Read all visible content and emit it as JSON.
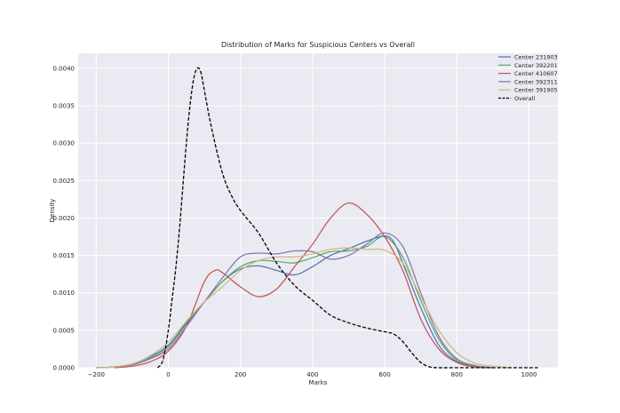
{
  "chart_data": {
    "type": "line",
    "title": "Distribution of Marks for Suspicious Centers vs Overall",
    "xlabel": "Marks",
    "ylabel": "Density",
    "xlim": [
      -250,
      1080
    ],
    "ylim": [
      0,
      0.0042
    ],
    "x_ticks": [
      -200,
      0,
      200,
      400,
      600,
      800,
      1000
    ],
    "y_ticks": [
      0,
      0.0005,
      0.001,
      0.0015,
      0.002,
      0.0025,
      0.003,
      0.0035,
      0.004
    ],
    "x_tick_labels": [
      "−200",
      "0",
      "200",
      "400",
      "600",
      "800",
      "1000"
    ],
    "y_tick_labels": [
      "0.0000",
      "0.0005",
      "0.0010",
      "0.0015",
      "0.0020",
      "0.0025",
      "0.0030",
      "0.0035",
      "0.0040"
    ],
    "grid": true,
    "legend_position": "top-right",
    "background": "#eaeaf2",
    "series": [
      {
        "name": "Center 231903",
        "color": "#4c72b0",
        "dash": "solid",
        "points": [
          [
            -200,
            0
          ],
          [
            -150,
            1e-05
          ],
          [
            -100,
            5e-05
          ],
          [
            -50,
            0.00015
          ],
          [
            0,
            0.0003
          ],
          [
            50,
            0.0006
          ],
          [
            100,
            0.00088
          ],
          [
            150,
            0.00115
          ],
          [
            200,
            0.00132
          ],
          [
            250,
            0.00136
          ],
          [
            300,
            0.0013
          ],
          [
            350,
            0.00124
          ],
          [
            400,
            0.00135
          ],
          [
            450,
            0.0015
          ],
          [
            500,
            0.00159
          ],
          [
            550,
            0.00169
          ],
          [
            600,
            0.00176
          ],
          [
            625,
            0.00168
          ],
          [
            650,
            0.0014
          ],
          [
            700,
            0.0008
          ],
          [
            750,
            0.0003
          ],
          [
            800,
            8e-05
          ],
          [
            850,
            2e-05
          ],
          [
            900,
            0
          ]
        ]
      },
      {
        "name": "Center 392201",
        "color": "#55a868",
        "dash": "solid",
        "points": [
          [
            -200,
            0
          ],
          [
            -150,
            1e-05
          ],
          [
            -100,
            4e-05
          ],
          [
            -50,
            0.00013
          ],
          [
            0,
            0.00028
          ],
          [
            50,
            0.00058
          ],
          [
            100,
            0.00088
          ],
          [
            150,
            0.00115
          ],
          [
            200,
            0.00135
          ],
          [
            250,
            0.00143
          ],
          [
            300,
            0.00142
          ],
          [
            350,
            0.0014
          ],
          [
            400,
            0.00147
          ],
          [
            450,
            0.00155
          ],
          [
            500,
            0.00156
          ],
          [
            550,
            0.00162
          ],
          [
            600,
            0.00175
          ],
          [
            650,
            0.00148
          ],
          [
            700,
            0.0009
          ],
          [
            750,
            0.00038
          ],
          [
            800,
            0.0001
          ],
          [
            850,
            2e-05
          ],
          [
            900,
            0
          ]
        ]
      },
      {
        "name": "Center 410607",
        "color": "#c44e52",
        "dash": "solid",
        "points": [
          [
            -150,
            0
          ],
          [
            -100,
            2e-05
          ],
          [
            -50,
            8e-05
          ],
          [
            0,
            0.00022
          ],
          [
            50,
            0.00055
          ],
          [
            100,
            0.00115
          ],
          [
            130,
            0.0013
          ],
          [
            150,
            0.00127
          ],
          [
            200,
            0.00108
          ],
          [
            250,
            0.00095
          ],
          [
            300,
            0.00105
          ],
          [
            350,
            0.00135
          ],
          [
            400,
            0.00165
          ],
          [
            450,
            0.002
          ],
          [
            500,
            0.0022
          ],
          [
            550,
            0.00205
          ],
          [
            600,
            0.00175
          ],
          [
            650,
            0.0013
          ],
          [
            700,
            0.00065
          ],
          [
            750,
            0.00025
          ],
          [
            800,
            7e-05
          ],
          [
            850,
            1e-05
          ],
          [
            900,
            0
          ]
        ]
      },
      {
        "name": "Center 392311",
        "color": "#8172b2",
        "dash": "solid",
        "points": [
          [
            -200,
            0
          ],
          [
            -150,
            1e-05
          ],
          [
            -100,
            4e-05
          ],
          [
            -50,
            0.00012
          ],
          [
            0,
            0.00025
          ],
          [
            50,
            0.00055
          ],
          [
            100,
            0.00088
          ],
          [
            150,
            0.0012
          ],
          [
            200,
            0.00148
          ],
          [
            250,
            0.00153
          ],
          [
            300,
            0.00152
          ],
          [
            350,
            0.00156
          ],
          [
            400,
            0.00155
          ],
          [
            450,
            0.00145
          ],
          [
            500,
            0.0015
          ],
          [
            550,
            0.00165
          ],
          [
            600,
            0.0018
          ],
          [
            650,
            0.00162
          ],
          [
            700,
            0.001
          ],
          [
            750,
            0.00042
          ],
          [
            800,
            0.00012
          ],
          [
            850,
            3e-05
          ],
          [
            900,
            0
          ]
        ]
      },
      {
        "name": "Center 391905",
        "color": "#ccb974",
        "dash": "solid",
        "points": [
          [
            -200,
            0
          ],
          [
            -150,
            1e-05
          ],
          [
            -100,
            5e-05
          ],
          [
            -50,
            0.00016
          ],
          [
            0,
            0.00034
          ],
          [
            50,
            0.00062
          ],
          [
            100,
            0.00088
          ],
          [
            150,
            0.00108
          ],
          [
            200,
            0.0013
          ],
          [
            250,
            0.00143
          ],
          [
            300,
            0.00148
          ],
          [
            350,
            0.00148
          ],
          [
            400,
            0.00152
          ],
          [
            450,
            0.00158
          ],
          [
            500,
            0.0016
          ],
          [
            550,
            0.00158
          ],
          [
            600,
            0.00157
          ],
          [
            650,
            0.0014
          ],
          [
            700,
            0.00095
          ],
          [
            750,
            0.0005
          ],
          [
            800,
            0.0002
          ],
          [
            850,
            6e-05
          ],
          [
            900,
            2e-05
          ],
          [
            950,
            0
          ]
        ]
      },
      {
        "name": "Overall",
        "color": "#000000",
        "dash": "dashed",
        "points": [
          [
            -30,
            0
          ],
          [
            -15,
            0.0001
          ],
          [
            0,
            0.0005
          ],
          [
            10,
            0.0009
          ],
          [
            20,
            0.0013
          ],
          [
            30,
            0.0018
          ],
          [
            40,
            0.0024
          ],
          [
            50,
            0.003
          ],
          [
            60,
            0.0035
          ],
          [
            70,
            0.00385
          ],
          [
            80,
            0.004
          ],
          [
            90,
            0.00395
          ],
          [
            100,
            0.0037
          ],
          [
            120,
            0.0032
          ],
          [
            150,
            0.0026
          ],
          [
            175,
            0.0023
          ],
          [
            200,
            0.0021
          ],
          [
            250,
            0.0018
          ],
          [
            300,
            0.0014
          ],
          [
            350,
            0.0011
          ],
          [
            400,
            0.0009
          ],
          [
            450,
            0.0007
          ],
          [
            500,
            0.0006
          ],
          [
            550,
            0.00053
          ],
          [
            600,
            0.00048
          ],
          [
            625,
            0.00045
          ],
          [
            650,
            0.00035
          ],
          [
            675,
            0.0002
          ],
          [
            700,
            7e-05
          ],
          [
            725,
            1e-05
          ],
          [
            750,
            0
          ],
          [
            800,
            0
          ],
          [
            900,
            0
          ],
          [
            1025,
            0
          ]
        ]
      }
    ]
  }
}
